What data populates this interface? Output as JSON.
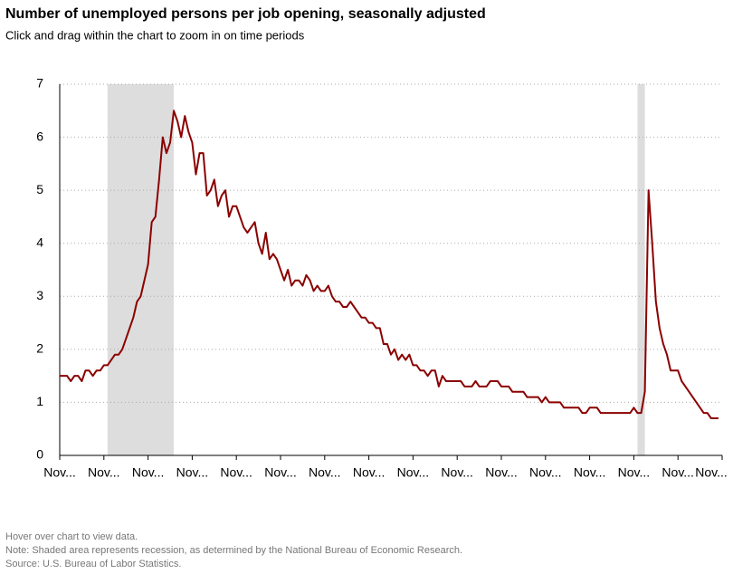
{
  "chart_data": {
    "type": "line",
    "title": "Number of unemployed persons per job opening, seasonally adjusted",
    "subtitle": "Click and drag within the chart to zoom in on time periods",
    "series": [
      {
        "color": "#8b0000",
        "values": [
          1.5,
          1.5,
          1.5,
          1.4,
          1.5,
          1.5,
          1.4,
          1.6,
          1.6,
          1.5,
          1.6,
          1.6,
          1.7,
          1.7,
          1.8,
          1.9,
          1.9,
          2.0,
          2.2,
          2.4,
          2.6,
          2.9,
          3.0,
          3.3,
          3.6,
          4.4,
          4.5,
          5.2,
          6.0,
          5.7,
          5.9,
          6.5,
          6.3,
          6.0,
          6.4,
          6.1,
          5.9,
          5.3,
          5.7,
          5.7,
          4.9,
          5.0,
          5.2,
          4.7,
          4.9,
          5.0,
          4.5,
          4.7,
          4.7,
          4.5,
          4.3,
          4.2,
          4.3,
          4.4,
          4.0,
          3.8,
          4.2,
          3.7,
          3.8,
          3.7,
          3.5,
          3.3,
          3.5,
          3.2,
          3.3,
          3.3,
          3.2,
          3.4,
          3.3,
          3.1,
          3.2,
          3.1,
          3.1,
          3.2,
          3.0,
          2.9,
          2.9,
          2.8,
          2.8,
          2.9,
          2.8,
          2.7,
          2.6,
          2.6,
          2.5,
          2.5,
          2.4,
          2.4,
          2.1,
          2.1,
          1.9,
          2.0,
          1.8,
          1.9,
          1.8,
          1.9,
          1.7,
          1.7,
          1.6,
          1.6,
          1.5,
          1.6,
          1.6,
          1.3,
          1.5,
          1.4,
          1.4,
          1.4,
          1.4,
          1.4,
          1.3,
          1.3,
          1.3,
          1.4,
          1.3,
          1.3,
          1.3,
          1.4,
          1.4,
          1.4,
          1.3,
          1.3,
          1.3,
          1.2,
          1.2,
          1.2,
          1.2,
          1.1,
          1.1,
          1.1,
          1.1,
          1.0,
          1.1,
          1.0,
          1.0,
          1.0,
          1.0,
          0.9,
          0.9,
          0.9,
          0.9,
          0.9,
          0.8,
          0.8,
          0.9,
          0.9,
          0.9,
          0.8,
          0.8,
          0.8,
          0.8,
          0.8,
          0.8,
          0.8,
          0.8,
          0.8,
          0.9,
          0.8,
          0.8,
          1.2,
          5.0,
          4.0,
          2.9,
          2.4,
          2.1,
          1.9,
          1.6,
          1.6,
          1.6,
          1.4,
          1.3,
          1.2,
          1.1,
          1.0,
          0.9,
          0.8,
          0.8,
          0.7,
          0.7,
          0.7
        ]
      }
    ],
    "recessions": [
      [
        13,
        31
      ],
      [
        157,
        159
      ]
    ],
    "recession_color": "#dddddd",
    "xlim": [
      0,
      180
    ],
    "xticks": [
      {
        "value": 0,
        "label": "Nov..."
      },
      {
        "value": 12,
        "label": "Nov..."
      },
      {
        "value": 24,
        "label": "Nov..."
      },
      {
        "value": 36,
        "label": "Nov..."
      },
      {
        "value": 48,
        "label": "Nov..."
      },
      {
        "value": 60,
        "label": "Nov..."
      },
      {
        "value": 72,
        "label": "Nov..."
      },
      {
        "value": 84,
        "label": "Nov..."
      },
      {
        "value": 96,
        "label": "Nov..."
      },
      {
        "value": 108,
        "label": "Nov..."
      },
      {
        "value": 120,
        "label": "Nov..."
      },
      {
        "value": 132,
        "label": "Nov..."
      },
      {
        "value": 144,
        "label": "Nov..."
      },
      {
        "value": 156,
        "label": "Nov..."
      },
      {
        "value": 168,
        "label": "Nov..."
      },
      {
        "value": 180,
        "label": "Nov..."
      }
    ],
    "ylim": [
      0,
      7
    ],
    "yticks": [
      0,
      1,
      2,
      3,
      4,
      5,
      6,
      7
    ],
    "grid": true,
    "notes": [
      "Hover over chart to view data.",
      "Note: Shaded area represents recession, as determined by the National Bureau of Economic Research.",
      "Source: U.S. Bureau of Labor Statistics."
    ]
  }
}
